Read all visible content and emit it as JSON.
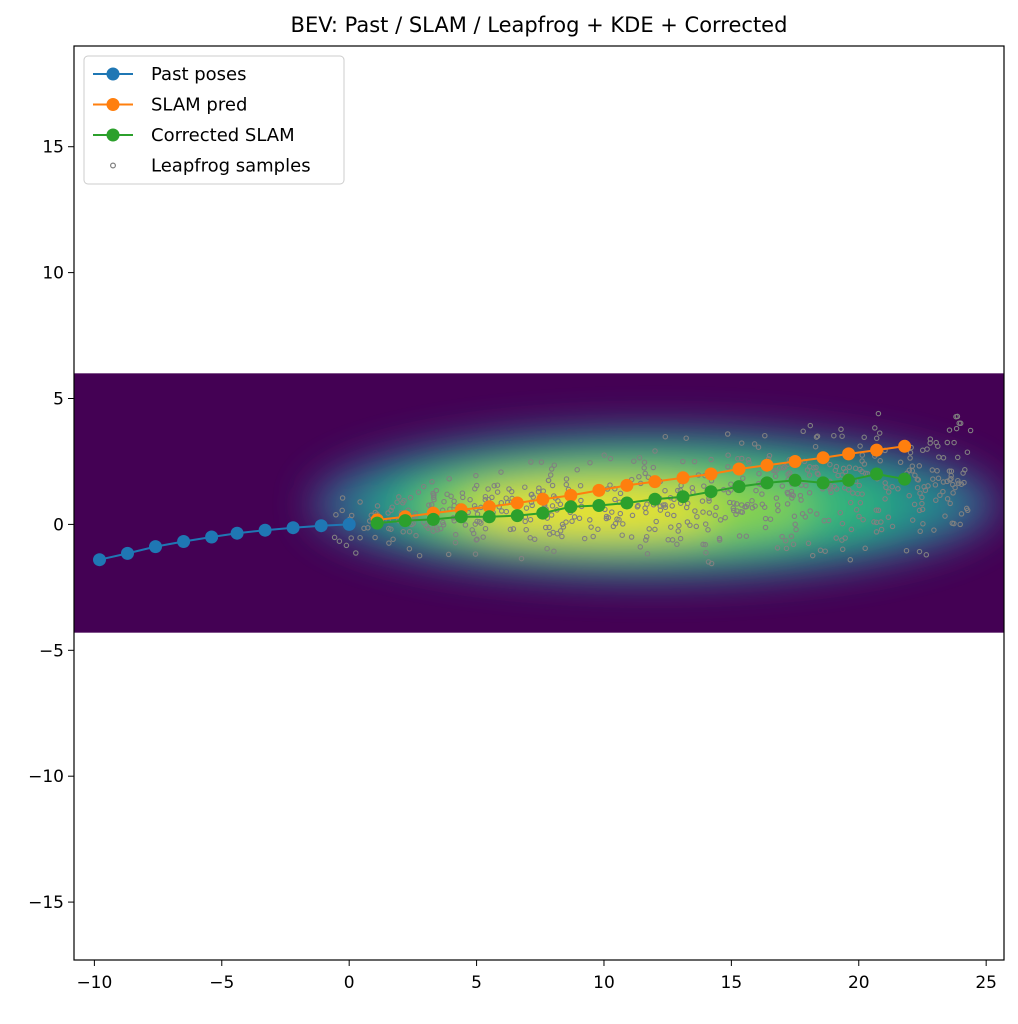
{
  "chart_data": {
    "type": "scatter",
    "title": "BEV: Past / SLAM / Leapfrog + KDE + Corrected",
    "xlabel": "",
    "ylabel": "",
    "xlim": [
      -10.8,
      25.7
    ],
    "ylim": [
      -17.3,
      19.0
    ],
    "xticks": [
      -10,
      -5,
      0,
      5,
      10,
      15,
      20,
      25
    ],
    "yticks": [
      -15,
      -10,
      -5,
      0,
      5,
      10,
      15
    ],
    "xtick_labels": [
      "−10",
      "−5",
      "0",
      "5",
      "10",
      "15",
      "20",
      "25"
    ],
    "ytick_labels": [
      "−15",
      "−10",
      "−5",
      "0",
      "5",
      "10",
      "15"
    ],
    "grid": false,
    "legend_position": "top-left",
    "kde_extent": {
      "x": [
        -10.8,
        25.7
      ],
      "y": [
        -4.3,
        6.0
      ]
    },
    "series": [
      {
        "name": "Past poses",
        "kind": "line-marker",
        "color": "#1f77b4",
        "x": [
          -9.8,
          -8.7,
          -7.6,
          -6.5,
          -5.4,
          -4.4,
          -3.3,
          -2.2,
          -1.1,
          0.0
        ],
        "y": [
          -1.4,
          -1.15,
          -0.88,
          -0.68,
          -0.5,
          -0.35,
          -0.23,
          -0.13,
          -0.05,
          0.0
        ]
      },
      {
        "name": "SLAM pred",
        "kind": "line-marker",
        "color": "#ff7f0e",
        "x": [
          1.1,
          2.2,
          3.3,
          4.4,
          5.5,
          6.6,
          7.6,
          8.7,
          9.8,
          10.9,
          12.0,
          13.1,
          14.2,
          15.3,
          16.4,
          17.5,
          18.6,
          19.6,
          20.7,
          21.8
        ],
        "y": [
          0.18,
          0.3,
          0.45,
          0.58,
          0.7,
          0.85,
          1.0,
          1.15,
          1.35,
          1.55,
          1.7,
          1.85,
          2.0,
          2.2,
          2.35,
          2.5,
          2.65,
          2.8,
          2.95,
          3.1
        ]
      },
      {
        "name": "Corrected SLAM",
        "kind": "line-marker",
        "color": "#2ca02c",
        "x": [
          1.1,
          2.2,
          3.3,
          4.4,
          5.5,
          6.6,
          7.6,
          8.7,
          9.8,
          10.9,
          12.0,
          13.1,
          14.2,
          15.3,
          16.4,
          17.5,
          18.6,
          19.6,
          20.7,
          21.8
        ],
        "y": [
          0.05,
          0.15,
          0.2,
          0.3,
          0.3,
          0.35,
          0.45,
          0.7,
          0.75,
          0.85,
          1.0,
          1.1,
          1.3,
          1.5,
          1.65,
          1.75,
          1.65,
          1.75,
          2.0,
          1.8
        ]
      },
      {
        "name": "Leapfrog samples",
        "kind": "scatter",
        "color": "#808080",
        "count": 600,
        "x_range": [
          -0.7,
          24.5
        ],
        "y_range": [
          -3.3,
          5.0
        ]
      }
    ]
  }
}
